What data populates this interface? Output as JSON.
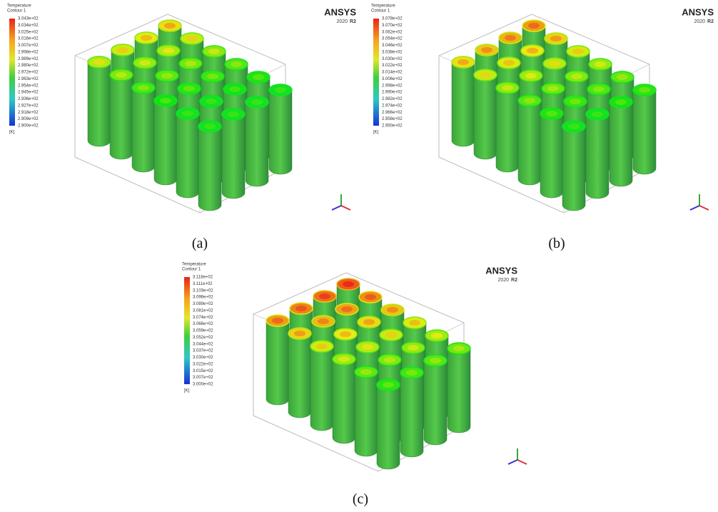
{
  "panels": [
    {
      "legend": {
        "title": "Temperature",
        "subtitle": "Contour 1",
        "labels": [
          "3.043e+02",
          "3.034e+02",
          "3.025e+02",
          "3.016e+02",
          "3.007e+02",
          "2.998e+02",
          "2.989e+02",
          "2.980e+02",
          "2.972e+02",
          "2.963e+02",
          "2.954e+02",
          "2.945e+02",
          "2.936e+02",
          "2.927e+02",
          "2.918e+02",
          "2.909e+02",
          "2.900e+02"
        ],
        "unit": "[K]"
      },
      "logo": {
        "brand": "ANSYS",
        "version": "2020",
        "release": "R2"
      },
      "caption": "(a)"
    },
    {
      "legend": {
        "title": "Temperature",
        "subtitle": "Contour 1",
        "labels": [
          "3.078e+02",
          "3.070e+02",
          "3.062e+02",
          "3.054e+02",
          "3.046e+02",
          "3.038e+02",
          "3.030e+02",
          "3.022e+02",
          "3.014e+02",
          "3.006e+02",
          "2.998e+02",
          "2.990e+02",
          "2.982e+02",
          "2.974e+02",
          "2.966e+02",
          "2.958e+02",
          "2.950e+02"
        ],
        "unit": "[K]"
      },
      "logo": {
        "brand": "ANSYS",
        "version": "2020",
        "release": "R2"
      },
      "caption": "(b)"
    },
    {
      "legend": {
        "title": "Temperature",
        "subtitle": "Contour 1",
        "labels": [
          "3.118e+02",
          "3.111e+02",
          "3.103e+02",
          "3.096e+02",
          "3.089e+02",
          "3.081e+02",
          "3.074e+02",
          "3.066e+02",
          "3.059e+02",
          "3.052e+02",
          "3.044e+02",
          "3.037e+02",
          "3.030e+02",
          "3.022e+02",
          "3.015e+02",
          "3.007e+02",
          "3.000e+02"
        ],
        "unit": "[K]"
      },
      "logo": {
        "brand": "ANSYS",
        "version": "2020",
        "release": "R2"
      },
      "caption": "(c)"
    }
  ]
}
